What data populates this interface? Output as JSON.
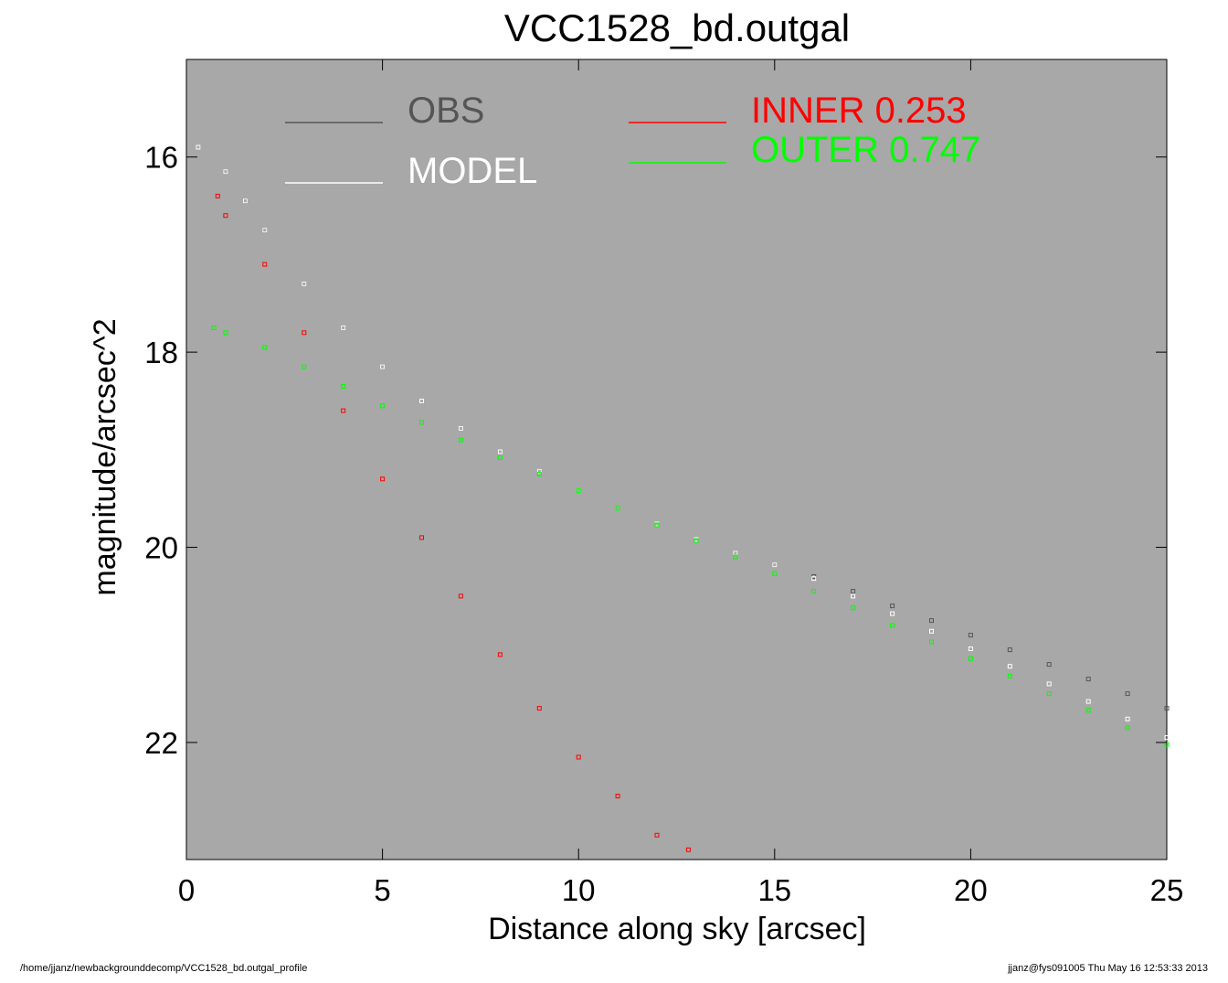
{
  "page": {
    "footer_left": "/home/jjanz/newbackgrounddecomp/VCC1528_bd.outgal_profile",
    "footer_right": "jjanz@fys091005  Thu May 16 12:53:33 2013"
  },
  "chart_data": {
    "type": "scatter",
    "title": "VCC1528_bd.outgal",
    "xlabel": "Distance along sky [arcsec]",
    "ylabel": "magnitude/arcsec^2",
    "xlim": [
      0,
      25
    ],
    "ylim": [
      23.2,
      15.0
    ],
    "y_inverted": true,
    "x_ticks": [
      0,
      5,
      10,
      15,
      20,
      25
    ],
    "y_ticks": [
      16,
      18,
      20,
      22
    ],
    "x_tick_labels": [
      "0",
      "5",
      "10",
      "15",
      "20",
      "25"
    ],
    "y_tick_labels": [
      "16",
      "18",
      "20",
      "22"
    ],
    "grid": false,
    "plot_background": "#a8a8a8",
    "legend": [
      {
        "name": "OBS",
        "label": "OBS",
        "color": "#555555"
      },
      {
        "name": "MODEL",
        "label": "MODEL",
        "color": "#ffffff"
      },
      {
        "name": "INNER",
        "label": "INNER  0.253",
        "color": "#ff0000"
      },
      {
        "name": "OUTER",
        "label": "OUTER  0.747",
        "color": "#00ff00"
      }
    ],
    "series": [
      {
        "name": "OBS",
        "color": "#555555",
        "x": [
          0.3,
          1.0,
          1.5,
          2.0,
          3.0,
          4.0,
          5.0,
          6.0,
          7.0,
          8.0,
          9.0,
          10.0,
          11.0,
          12.0,
          13.0,
          14.0,
          15.0,
          16.0,
          17.0,
          18.0,
          19.0,
          20.0,
          21.0,
          22.0,
          23.0,
          24.0,
          25.0
        ],
        "y": [
          15.9,
          16.15,
          16.45,
          16.75,
          17.3,
          17.75,
          18.15,
          18.5,
          18.78,
          19.02,
          19.22,
          19.42,
          19.6,
          19.76,
          19.92,
          20.06,
          20.18,
          20.3,
          20.45,
          20.6,
          20.75,
          20.9,
          21.05,
          21.2,
          21.35,
          21.5,
          21.65
        ]
      },
      {
        "name": "MODEL",
        "color": "#ffffff",
        "x": [
          0.3,
          1.0,
          1.5,
          2.0,
          3.0,
          4.0,
          5.0,
          6.0,
          7.0,
          8.0,
          9.0,
          10.0,
          11.0,
          12.0,
          13.0,
          14.0,
          15.0,
          16.0,
          17.0,
          18.0,
          19.0,
          20.0,
          21.0,
          22.0,
          23.0,
          24.0,
          25.0
        ],
        "y": [
          15.9,
          16.15,
          16.45,
          16.75,
          17.3,
          17.75,
          18.15,
          18.5,
          18.78,
          19.02,
          19.22,
          19.42,
          19.6,
          19.76,
          19.92,
          20.06,
          20.18,
          20.32,
          20.5,
          20.68,
          20.86,
          21.04,
          21.22,
          21.4,
          21.58,
          21.76,
          21.95
        ]
      },
      {
        "name": "INNER",
        "color": "#ff0000",
        "x": [
          0.8,
          1.0,
          2.0,
          3.0,
          4.0,
          5.0,
          6.0,
          7.0,
          8.0,
          9.0,
          10.0,
          11.0,
          12.0,
          12.8
        ],
        "y": [
          16.4,
          16.6,
          17.1,
          17.8,
          18.6,
          19.3,
          19.9,
          20.5,
          21.1,
          21.65,
          22.15,
          22.55,
          22.95,
          23.1
        ]
      },
      {
        "name": "OUTER",
        "color": "#00ff00",
        "x": [
          0.7,
          1.0,
          2.0,
          3.0,
          4.0,
          5.0,
          6.0,
          7.0,
          8.0,
          9.0,
          10.0,
          11.0,
          12.0,
          13.0,
          14.0,
          15.0,
          16.0,
          17.0,
          18.0,
          19.0,
          20.0,
          21.0,
          22.0,
          23.0,
          24.0,
          25.0
        ],
        "y": [
          17.75,
          17.8,
          17.95,
          18.15,
          18.35,
          18.55,
          18.72,
          18.9,
          19.08,
          19.25,
          19.42,
          19.6,
          19.77,
          19.93,
          20.1,
          20.27,
          20.45,
          20.62,
          20.8,
          20.97,
          21.14,
          21.32,
          21.5,
          21.67,
          21.85,
          22.02
        ]
      }
    ]
  }
}
